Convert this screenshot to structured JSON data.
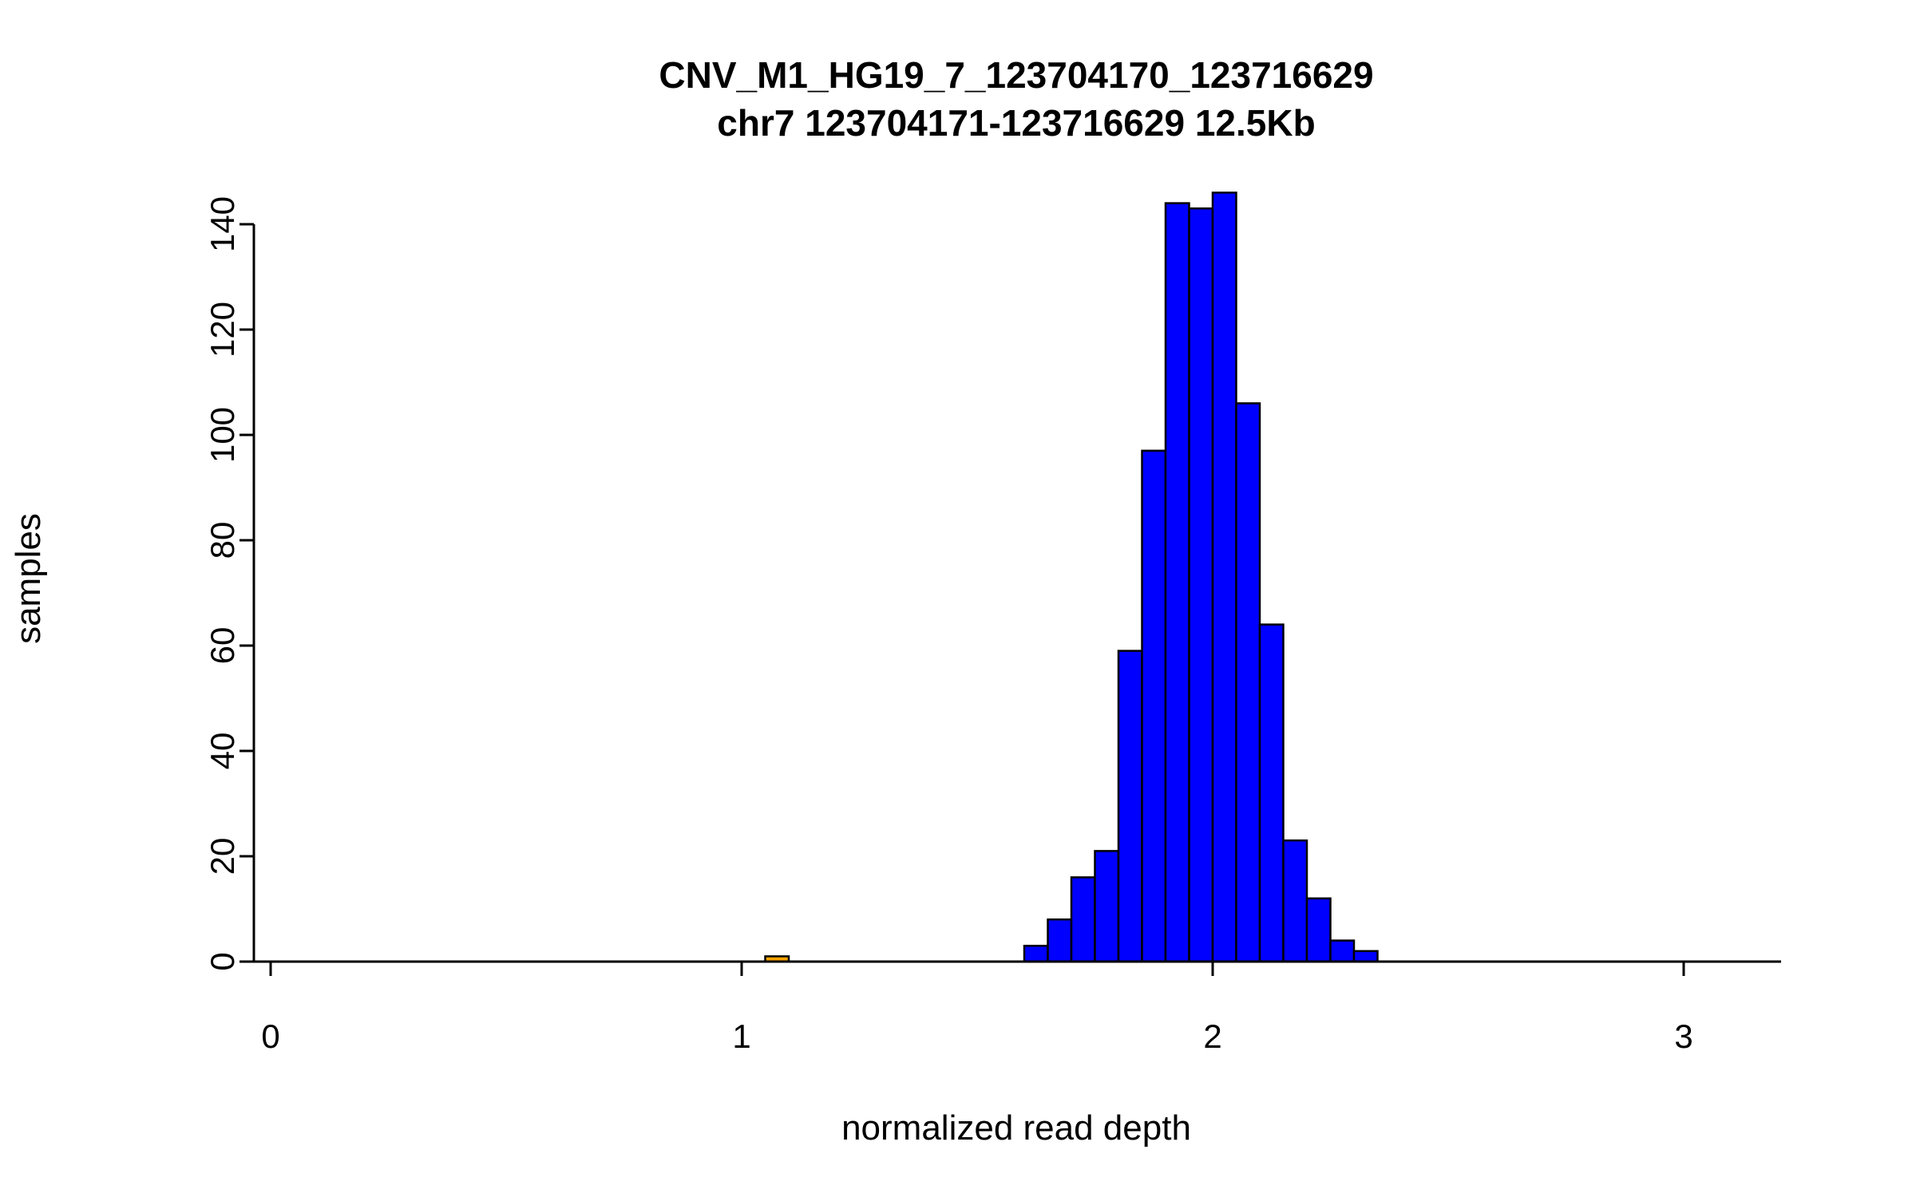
{
  "chart_data": {
    "type": "bar",
    "title": "CNV_M1_HG19_7_123704170_123716629",
    "subtitle": "chr7 123704171-123716629 12.5Kb",
    "xlabel": "normalized read depth",
    "ylabel": "samples",
    "xlim": [
      0,
      3.2
    ],
    "ylim": [
      0,
      146
    ],
    "x_ticks": [
      0,
      1,
      2,
      3
    ],
    "y_ticks": [
      0,
      20,
      40,
      60,
      80,
      100,
      120,
      140
    ],
    "bin_width": 0.05,
    "grid": false,
    "legend": "none",
    "colors": {
      "bar_fill": "#0000FF",
      "highlight_fill": "#FFA500",
      "bar_stroke": "#000000",
      "axis": "#000000"
    },
    "bars": [
      {
        "x0": 1.05,
        "x1": 1.1,
        "count": 1,
        "color": "#FFA500"
      },
      {
        "x0": 1.6,
        "x1": 1.65,
        "count": 3,
        "color": "#0000FF"
      },
      {
        "x0": 1.65,
        "x1": 1.7,
        "count": 8,
        "color": "#0000FF"
      },
      {
        "x0": 1.7,
        "x1": 1.75,
        "count": 16,
        "color": "#0000FF"
      },
      {
        "x0": 1.75,
        "x1": 1.8,
        "count": 21,
        "color": "#0000FF"
      },
      {
        "x0": 1.8,
        "x1": 1.85,
        "count": 59,
        "color": "#0000FF"
      },
      {
        "x0": 1.85,
        "x1": 1.9,
        "count": 97,
        "color": "#0000FF"
      },
      {
        "x0": 1.9,
        "x1": 1.95,
        "count": 144,
        "color": "#0000FF"
      },
      {
        "x0": 1.95,
        "x1": 2.0,
        "count": 143,
        "color": "#0000FF"
      },
      {
        "x0": 2.0,
        "x1": 2.05,
        "count": 146,
        "color": "#0000FF"
      },
      {
        "x0": 2.05,
        "x1": 2.1,
        "count": 106,
        "color": "#0000FF"
      },
      {
        "x0": 2.1,
        "x1": 2.15,
        "count": 64,
        "color": "#0000FF"
      },
      {
        "x0": 2.15,
        "x1": 2.2,
        "count": 23,
        "color": "#0000FF"
      },
      {
        "x0": 2.2,
        "x1": 2.25,
        "count": 12,
        "color": "#0000FF"
      },
      {
        "x0": 2.25,
        "x1": 2.3,
        "count": 4,
        "color": "#0000FF"
      },
      {
        "x0": 2.3,
        "x1": 2.35,
        "count": 2,
        "color": "#0000FF"
      }
    ]
  }
}
